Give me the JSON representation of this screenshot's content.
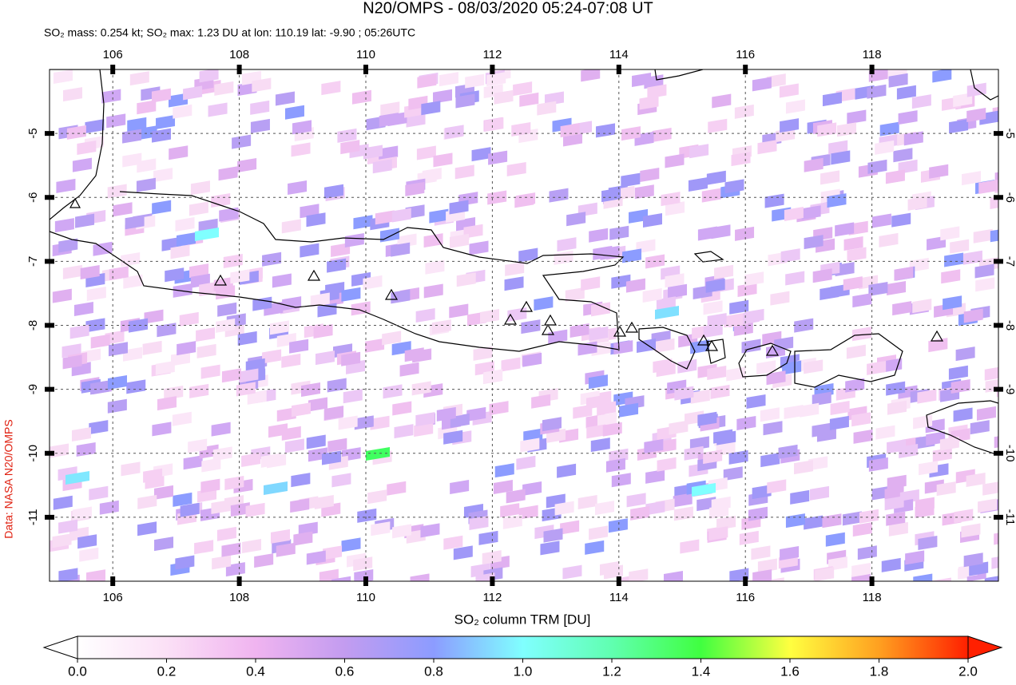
{
  "map": {
    "title": "N20/OMPS - 08/03/2020 05:24-07:08 UT",
    "subtitle": "SO₂ mass: 0.254 kt; SO₂ max: 1.23 DU at lon: 110.19 lat: -9.90 ; 05:26UTC",
    "credit": "Data: NASA N20/OMPS",
    "xlim": [
      105,
      120
    ],
    "ylim": [
      -12,
      -4
    ],
    "xticks": [
      106,
      108,
      110,
      112,
      114,
      116,
      118
    ],
    "yticks": [
      -5,
      -6,
      -7,
      -8,
      -9,
      -10,
      -11
    ],
    "colorbar": {
      "label": "SO₂ column TRM [DU]",
      "lim": [
        0,
        2
      ],
      "ticks": [
        {
          "value": 0,
          "label": "0.0"
        },
        {
          "value": 0.2,
          "label": "0.2"
        },
        {
          "value": 0.4,
          "label": "0.4"
        },
        {
          "value": 0.6,
          "label": "0.6"
        },
        {
          "value": 0.8,
          "label": "0.8"
        },
        {
          "value": 1,
          "label": "1.0"
        },
        {
          "value": 1.2,
          "label": "1.2"
        },
        {
          "value": 1.4,
          "label": "1.4"
        },
        {
          "value": 1.6,
          "label": "1.6"
        },
        {
          "value": 1.8,
          "label": "1.8"
        },
        {
          "value": 2,
          "label": "2.0"
        }
      ]
    }
  }
}
